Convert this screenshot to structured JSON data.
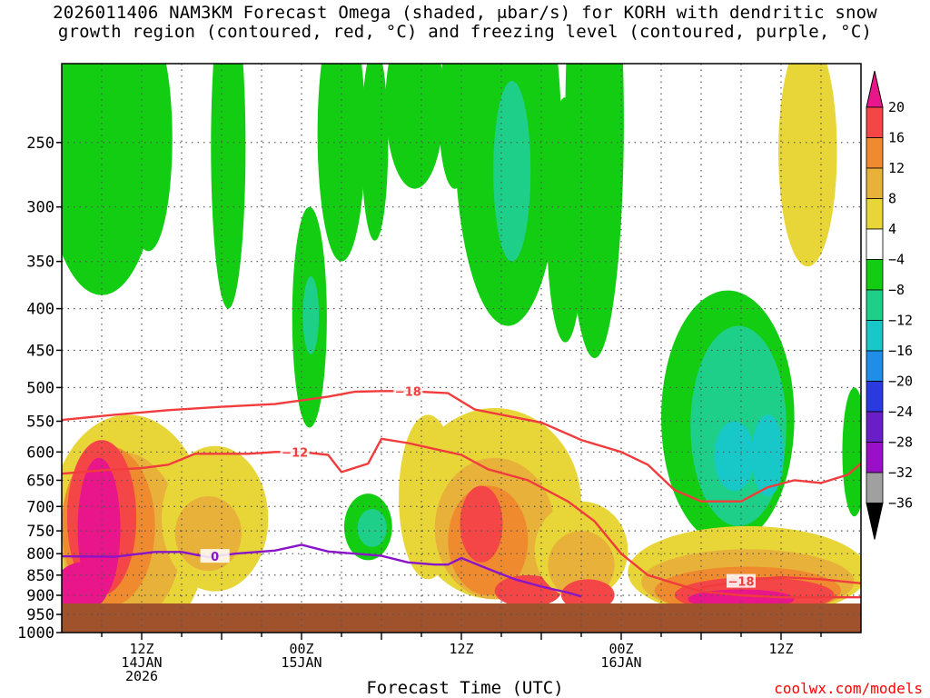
{
  "title_line1": "2026011406 NAM3KM Forecast Omega (shaded, μbar/s) for KORH with dendritic snow",
  "title_line2": "growth region (contoured, red, °C) and freezing level (contoured, purple, °C)",
  "xlabel": "Forecast Time (UTC)",
  "credit": "coolwx.com/models",
  "chart_data": {
    "type": "heatmap",
    "title": "2026011406 NAM3KM Forecast Omega (shaded, μbar/s) for KORH with dendritic snow growth region (contoured, red, °C) and freezing level (contoured, purple, °C)",
    "xlabel": "Forecast Time (UTC)",
    "ylabel": "",
    "x_range_hours": [
      0,
      60
    ],
    "y_levels_hpa": [
      250,
      300,
      350,
      400,
      450,
      500,
      550,
      600,
      650,
      700,
      750,
      800,
      850,
      900,
      950,
      1000
    ],
    "y_range_hpa": [
      200,
      1000
    ],
    "y_scale": "log-pressure",
    "x_ticks": [
      {
        "hour": 6,
        "label": [
          "12Z",
          "14JAN",
          "2026"
        ]
      },
      {
        "hour": 18,
        "label": [
          "00Z",
          "15JAN"
        ]
      },
      {
        "hour": 30,
        "label": [
          "12Z"
        ]
      },
      {
        "hour": 42,
        "label": [
          "00Z",
          "16JAN"
        ]
      },
      {
        "hour": 54,
        "label": [
          "12Z"
        ]
      }
    ],
    "grid": true,
    "colorbar": {
      "placement": "right",
      "labels": [
        "20",
        "16",
        "12",
        "8",
        "4",
        "−4",
        "−8",
        "−12",
        "−16",
        "−20",
        "−24",
        "−28",
        "−32",
        "−36"
      ],
      "bins": [
        {
          "lo": 20,
          "hi": 999,
          "color": "#e8168a"
        },
        {
          "lo": 16,
          "hi": 20,
          "color": "#f44646"
        },
        {
          "lo": 12,
          "hi": 16,
          "color": "#ef8a2f"
        },
        {
          "lo": 8,
          "hi": 12,
          "color": "#e8b23a"
        },
        {
          "lo": 4,
          "hi": 8,
          "color": "#e8d638"
        },
        {
          "lo": -4,
          "hi": 4,
          "color": "#ffffff"
        },
        {
          "lo": -8,
          "hi": -4,
          "color": "#12cd12"
        },
        {
          "lo": -12,
          "hi": -8,
          "color": "#1ecf8a"
        },
        {
          "lo": -16,
          "hi": -12,
          "color": "#18c8c8"
        },
        {
          "lo": -20,
          "hi": -16,
          "color": "#1e8ee8"
        },
        {
          "lo": -24,
          "hi": -20,
          "color": "#2a3ae0"
        },
        {
          "lo": -28,
          "hi": -24,
          "color": "#6a1ec8"
        },
        {
          "lo": -32,
          "hi": -28,
          "color": "#9a10c8"
        },
        {
          "lo": -36,
          "hi": -32,
          "color": "#a0a0a0"
        },
        {
          "lo": -999,
          "hi": -36,
          "color": "#000000"
        }
      ]
    },
    "ground_color": "#a0522d",
    "omega_regions": [
      {
        "value": -10,
        "hour": 1.5,
        "p": 255,
        "dh": 2.6,
        "dp": 55
      },
      {
        "value": -6,
        "hour": 3.0,
        "p": 280,
        "dh": 4.2,
        "dp": 105
      },
      {
        "value": -6,
        "hour": 6.5,
        "p": 260,
        "dh": 1.8,
        "dp": 80
      },
      {
        "value": -6,
        "hour": 12.5,
        "p": 280,
        "dh": 1.3,
        "dp": 120
      },
      {
        "value": -6,
        "hour": 18.6,
        "p": 430,
        "dh": 1.3,
        "dp": 130
      },
      {
        "value": -12,
        "hour": 18.7,
        "p": 410,
        "dh": 0.6,
        "dp": 45
      },
      {
        "value": -6,
        "hour": 21.0,
        "p": 260,
        "dh": 1.8,
        "dp": 90
      },
      {
        "value": -6,
        "hour": 23.5,
        "p": 260,
        "dh": 1.0,
        "dp": 70
      },
      {
        "value": -6,
        "hour": 26.5,
        "p": 230,
        "dh": 2.2,
        "dp": 55
      },
      {
        "value": -6,
        "hour": 29.5,
        "p": 235,
        "dh": 1.2,
        "dp": 50
      },
      {
        "value": -6,
        "hour": 33.5,
        "p": 280,
        "dh": 4.0,
        "dp": 140
      },
      {
        "value": -12,
        "hour": 33.8,
        "p": 280,
        "dh": 1.4,
        "dp": 70
      },
      {
        "value": -6,
        "hour": 37.8,
        "p": 330,
        "dh": 1.4,
        "dp": 110
      },
      {
        "value": -6,
        "hour": 40.0,
        "p": 290,
        "dh": 2.2,
        "dp": 170
      },
      {
        "value": -6,
        "hour": 50.0,
        "p": 580,
        "dh": 5.0,
        "dp": 200
      },
      {
        "value": -12,
        "hour": 50.8,
        "p": 580,
        "dh": 3.6,
        "dp": 160
      },
      {
        "value": -16,
        "hour": 50.5,
        "p": 610,
        "dh": 1.5,
        "dp": 60
      },
      {
        "value": -16,
        "hour": 53.0,
        "p": 610,
        "dh": 1.2,
        "dp": 70
      },
      {
        "value": -6,
        "hour": 59.5,
        "p": 610,
        "dh": 0.9,
        "dp": 110
      },
      {
        "value": -6,
        "hour": 23.0,
        "p": 745,
        "dh": 1.8,
        "dp": 70
      },
      {
        "value": -12,
        "hour": 23.3,
        "p": 745,
        "dh": 1.1,
        "dp": 40
      },
      {
        "value": 6,
        "hour": 56.0,
        "p": 270,
        "dh": 2.2,
        "dp": 85
      },
      {
        "value": 6,
        "hour": 5.0,
        "p": 790,
        "dh": 6.0,
        "dp": 250
      },
      {
        "value": 10,
        "hour": 4.5,
        "p": 790,
        "dh": 4.5,
        "dp": 190
      },
      {
        "value": 14,
        "hour": 3.5,
        "p": 760,
        "dh": 3.5,
        "dp": 170
      },
      {
        "value": 18,
        "hour": 3.0,
        "p": 740,
        "dh": 2.6,
        "dp": 160
      },
      {
        "value": 22,
        "hour": 2.8,
        "p": 760,
        "dh": 1.6,
        "dp": 150
      },
      {
        "value": 22,
        "hour": 1.5,
        "p": 880,
        "dh": 2.0,
        "dp": 60
      },
      {
        "value": 6,
        "hour": 11.5,
        "p": 740,
        "dh": 4.0,
        "dp": 150
      },
      {
        "value": 10,
        "hour": 11.0,
        "p": 760,
        "dh": 2.5,
        "dp": 80
      },
      {
        "value": 6,
        "hour": 27.5,
        "p": 700,
        "dh": 2.2,
        "dp": 160
      },
      {
        "value": 6,
        "hour": 32.5,
        "p": 720,
        "dh": 6.5,
        "dp": 190
      },
      {
        "value": 10,
        "hour": 32.5,
        "p": 760,
        "dh": 4.5,
        "dp": 150
      },
      {
        "value": 14,
        "hour": 32.0,
        "p": 780,
        "dh": 3.0,
        "dp": 120
      },
      {
        "value": 18,
        "hour": 31.5,
        "p": 740,
        "dh": 1.6,
        "dp": 80
      },
      {
        "value": 18,
        "hour": 35.0,
        "p": 890,
        "dh": 2.5,
        "dp": 40
      },
      {
        "value": 6,
        "hour": 39.0,
        "p": 800,
        "dh": 3.5,
        "dp": 110
      },
      {
        "value": 10,
        "hour": 39.0,
        "p": 830,
        "dh": 2.5,
        "dp": 80
      },
      {
        "value": 18,
        "hour": 39.5,
        "p": 900,
        "dh": 2.0,
        "dp": 40
      },
      {
        "value": 6,
        "hour": 51.5,
        "p": 850,
        "dh": 9.0,
        "dp": 110
      },
      {
        "value": 10,
        "hour": 51.5,
        "p": 870,
        "dh": 8.0,
        "dp": 80
      },
      {
        "value": 14,
        "hour": 51.5,
        "p": 890,
        "dh": 7.0,
        "dp": 60
      },
      {
        "value": 18,
        "hour": 52.0,
        "p": 900,
        "dh": 6.0,
        "dp": 45
      },
      {
        "value": 22,
        "hour": 51.0,
        "p": 910,
        "dh": 4.0,
        "dp": 25
      }
    ],
    "isotherms": [
      {
        "value": -18,
        "label": "−18",
        "label_hour": 26.0,
        "points": [
          [
            0,
            548
          ],
          [
            4,
            540
          ],
          [
            8,
            533
          ],
          [
            12,
            528
          ],
          [
            16,
            524
          ],
          [
            20,
            513
          ],
          [
            22,
            506
          ],
          [
            24,
            505
          ],
          [
            26,
            505
          ],
          [
            29,
            508
          ],
          [
            31,
            532
          ],
          [
            33,
            540
          ],
          [
            36,
            552
          ],
          [
            39,
            580
          ],
          [
            42,
            600
          ],
          [
            44,
            622
          ],
          [
            46,
            668
          ],
          [
            48,
            690
          ],
          [
            51,
            690
          ],
          [
            53,
            663
          ],
          [
            55,
            650
          ],
          [
            57,
            655
          ],
          [
            59,
            640
          ],
          [
            60,
            620
          ]
        ]
      },
      {
        "value": -12,
        "label": "−12",
        "label_hour": 17.5,
        "points": [
          [
            0,
            638
          ],
          [
            3,
            632
          ],
          [
            6,
            628
          ],
          [
            8,
            622
          ],
          [
            10,
            603
          ],
          [
            14,
            603
          ],
          [
            16,
            600
          ],
          [
            18,
            600
          ],
          [
            20,
            605
          ],
          [
            21,
            635
          ],
          [
            23,
            620
          ],
          [
            24,
            578
          ],
          [
            26,
            585
          ],
          [
            28,
            595
          ],
          [
            30,
            605
          ],
          [
            32,
            630
          ],
          [
            35,
            650
          ],
          [
            38,
            690
          ],
          [
            40,
            730
          ],
          [
            42,
            800
          ],
          [
            44,
            850
          ],
          [
            46,
            870
          ],
          [
            48,
            890
          ],
          [
            51,
            900
          ],
          [
            54,
            905
          ],
          [
            57,
            905
          ],
          [
            60,
            905
          ]
        ]
      },
      {
        "value": -18,
        "label": "−18",
        "label_hour": 51.0,
        "points": [
          [
            48,
            880
          ],
          [
            50,
            870
          ],
          [
            52,
            860
          ],
          [
            54,
            855
          ],
          [
            57,
            860
          ],
          [
            60,
            870
          ]
        ]
      }
    ],
    "freezing_level": {
      "value": 0,
      "label": "0",
      "label_hour": 11.5,
      "points": [
        [
          0,
          806
        ],
        [
          4,
          807
        ],
        [
          7,
          796
        ],
        [
          9,
          796
        ],
        [
          11,
          808
        ],
        [
          13,
          800
        ],
        [
          16,
          793
        ],
        [
          18,
          780
        ],
        [
          20,
          795
        ],
        [
          22,
          800
        ],
        [
          24,
          805
        ],
        [
          26,
          820
        ],
        [
          28,
          825
        ],
        [
          29,
          825
        ],
        [
          30,
          810
        ],
        [
          32,
          835
        ],
        [
          34,
          860
        ],
        [
          36,
          878
        ],
        [
          38,
          893
        ],
        [
          39,
          903
        ]
      ]
    }
  }
}
